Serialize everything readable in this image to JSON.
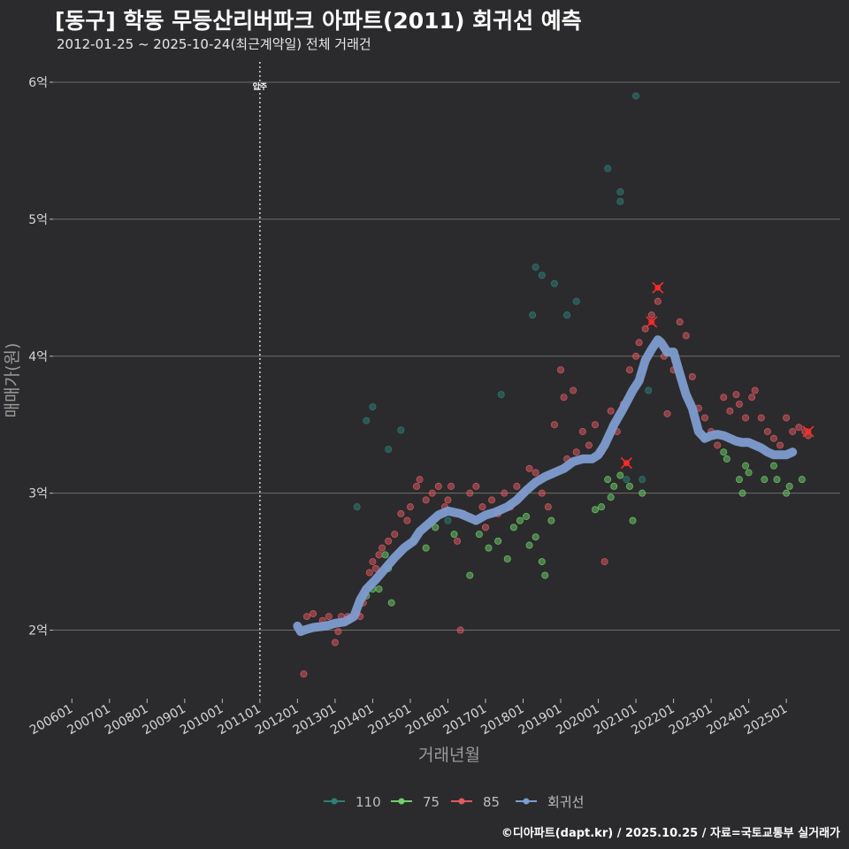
{
  "title": "[동구] 학동 무등산리버파크 아파트(2011) 회귀선 예측",
  "subtitle": "2012-01-25 ~ 2025-10-24(최근계약일) 전체 거래건",
  "credit": "©디아파트(dapt.kr) / 2025.10.25 / 자료=국토교통부 실거래가",
  "colors": {
    "background": "#2b2b2d",
    "grid": "#6e6e6e",
    "s110": "#2f7f76",
    "s75": "#6fd06a",
    "s85": "#e05a62",
    "regression": "#7e9cd0",
    "highlight": "#ff2a2a"
  },
  "chart_data": {
    "type": "scatter",
    "xlabel": "거래년월",
    "ylabel": "매매가(원)",
    "xlim": [
      "2005-07",
      "2026-09"
    ],
    "ylim": [
      1.5,
      6.2
    ],
    "x_ticks": [
      "200601",
      "200701",
      "200801",
      "200901",
      "201001",
      "201101",
      "201201",
      "201301",
      "201401",
      "201501",
      "201601",
      "201701",
      "201801",
      "201901",
      "202001",
      "202101",
      "202201",
      "202301",
      "202401",
      "202501"
    ],
    "y_ticks": [
      {
        "value": 2,
        "label": "2억"
      },
      {
        "value": 3,
        "label": "3억"
      },
      {
        "value": 4,
        "label": "4억"
      },
      {
        "value": 5,
        "label": "5억"
      },
      {
        "value": 6,
        "label": "6억"
      }
    ],
    "annotation": {
      "x": "2011-01",
      "label": "입주"
    },
    "legend": {
      "placement": "bottom",
      "items": [
        {
          "key": "s110",
          "label": "110"
        },
        {
          "key": "s75",
          "label": "75"
        },
        {
          "key": "s85",
          "label": "85"
        },
        {
          "key": "regression",
          "label": "회귀선"
        }
      ]
    },
    "series": [
      {
        "name": "110",
        "color_key": "s110",
        "points": [
          [
            "2013-08",
            2.9
          ],
          [
            "2013-11",
            3.53
          ],
          [
            "2014-01",
            3.63
          ],
          [
            "2014-06",
            3.32
          ],
          [
            "2014-10",
            3.46
          ],
          [
            "2016-01",
            2.8
          ],
          [
            "2017-06",
            3.72
          ],
          [
            "2018-04",
            4.3
          ],
          [
            "2018-05",
            4.65
          ],
          [
            "2018-07",
            4.59
          ],
          [
            "2018-11",
            4.53
          ],
          [
            "2019-03",
            4.3
          ],
          [
            "2019-06",
            4.4
          ],
          [
            "2020-04",
            5.37
          ],
          [
            "2020-08",
            5.2
          ],
          [
            "2020-08",
            5.13
          ],
          [
            "2021-01",
            5.9
          ],
          [
            "2020-10",
            3.1
          ],
          [
            "2021-05",
            3.75
          ],
          [
            "2021-03",
            3.1
          ]
        ]
      },
      {
        "name": "75",
        "color_key": "s75",
        "points": [
          [
            "2013-11",
            2.25
          ],
          [
            "2014-01",
            2.3
          ],
          [
            "2014-03",
            2.3
          ],
          [
            "2014-05",
            2.55
          ],
          [
            "2014-06",
            2.45
          ],
          [
            "2014-07",
            2.2
          ],
          [
            "2015-02",
            2.65
          ],
          [
            "2015-06",
            2.6
          ],
          [
            "2015-09",
            2.75
          ],
          [
            "2016-03",
            2.7
          ],
          [
            "2016-08",
            2.4
          ],
          [
            "2016-11",
            2.7
          ],
          [
            "2017-02",
            2.6
          ],
          [
            "2017-05",
            2.65
          ],
          [
            "2017-08",
            2.52
          ],
          [
            "2017-10",
            2.75
          ],
          [
            "2017-12",
            2.8
          ],
          [
            "2018-02",
            2.83
          ],
          [
            "2018-03",
            2.62
          ],
          [
            "2018-05",
            2.68
          ],
          [
            "2018-07",
            2.5
          ],
          [
            "2018-08",
            2.4
          ],
          [
            "2018-10",
            2.8
          ],
          [
            "2019-12",
            2.88
          ],
          [
            "2020-02",
            2.9
          ],
          [
            "2020-04",
            3.1
          ],
          [
            "2020-05",
            2.97
          ],
          [
            "2020-06",
            3.05
          ],
          [
            "2020-08",
            3.13
          ],
          [
            "2020-11",
            3.05
          ],
          [
            "2020-12",
            2.8
          ],
          [
            "2021-03",
            3.0
          ],
          [
            "2022-11",
            3.41
          ],
          [
            "2023-05",
            3.3
          ],
          [
            "2023-06",
            3.25
          ],
          [
            "2023-10",
            3.1
          ],
          [
            "2023-11",
            3.0
          ],
          [
            "2023-12",
            3.2
          ],
          [
            "2024-01",
            3.15
          ],
          [
            "2024-06",
            3.1
          ],
          [
            "2024-09",
            3.2
          ],
          [
            "2024-10",
            3.1
          ],
          [
            "2025-01",
            3.0
          ],
          [
            "2025-02",
            3.05
          ],
          [
            "2025-06",
            3.1
          ]
        ]
      },
      {
        "name": "85",
        "color_key": "s85",
        "points": [
          [
            "2012-03",
            1.68
          ],
          [
            "2012-04",
            2.1
          ],
          [
            "2012-06",
            2.12
          ],
          [
            "2012-09",
            2.07
          ],
          [
            "2012-11",
            2.1
          ],
          [
            "2013-01",
            1.91
          ],
          [
            "2013-02",
            1.99
          ],
          [
            "2013-03",
            2.1
          ],
          [
            "2013-05",
            2.1
          ],
          [
            "2013-06",
            2.08
          ],
          [
            "2013-08",
            2.12
          ],
          [
            "2013-09",
            2.1
          ],
          [
            "2013-10",
            2.2
          ],
          [
            "2013-12",
            2.42
          ],
          [
            "2014-01",
            2.5
          ],
          [
            "2014-02",
            2.45
          ],
          [
            "2014-03",
            2.55
          ],
          [
            "2014-04",
            2.6
          ],
          [
            "2014-06",
            2.65
          ],
          [
            "2014-08",
            2.7
          ],
          [
            "2014-10",
            2.85
          ],
          [
            "2014-12",
            2.8
          ],
          [
            "2015-01",
            2.9
          ],
          [
            "2015-03",
            3.05
          ],
          [
            "2015-04",
            3.1
          ],
          [
            "2015-06",
            2.95
          ],
          [
            "2015-08",
            3.0
          ],
          [
            "2015-10",
            3.05
          ],
          [
            "2015-12",
            2.9
          ],
          [
            "2016-01",
            2.95
          ],
          [
            "2016-02",
            3.05
          ],
          [
            "2016-04",
            2.65
          ],
          [
            "2016-05",
            2.0
          ],
          [
            "2016-06",
            2.85
          ],
          [
            "2016-08",
            3.0
          ],
          [
            "2016-10",
            3.05
          ],
          [
            "2016-12",
            2.9
          ],
          [
            "2017-01",
            2.75
          ],
          [
            "2017-03",
            2.95
          ],
          [
            "2017-05",
            2.85
          ],
          [
            "2017-07",
            3.0
          ],
          [
            "2017-09",
            2.9
          ],
          [
            "2017-11",
            3.05
          ],
          [
            "2018-01",
            3.0
          ],
          [
            "2018-03",
            3.18
          ],
          [
            "2018-05",
            3.15
          ],
          [
            "2018-07",
            3.0
          ],
          [
            "2018-09",
            2.9
          ],
          [
            "2018-11",
            3.5
          ],
          [
            "2019-01",
            3.9
          ],
          [
            "2019-02",
            3.7
          ],
          [
            "2019-03",
            3.25
          ],
          [
            "2019-05",
            3.75
          ],
          [
            "2019-06",
            3.3
          ],
          [
            "2019-08",
            3.45
          ],
          [
            "2019-10",
            3.35
          ],
          [
            "2019-12",
            3.5
          ],
          [
            "2020-02",
            3.3
          ],
          [
            "2020-03",
            2.5
          ],
          [
            "2020-05",
            3.6
          ],
          [
            "2020-07",
            3.45
          ],
          [
            "2020-09",
            3.65
          ],
          [
            "2020-11",
            3.9
          ],
          [
            "2021-01",
            4.0
          ],
          [
            "2021-02",
            4.1
          ],
          [
            "2021-04",
            4.2
          ],
          [
            "2021-06",
            4.3
          ],
          [
            "2021-08",
            4.4
          ],
          [
            "2021-10",
            4.0
          ],
          [
            "2021-11",
            3.58
          ],
          [
            "2022-01",
            3.9
          ],
          [
            "2022-03",
            4.25
          ],
          [
            "2022-05",
            4.15
          ],
          [
            "2022-07",
            3.85
          ],
          [
            "2022-09",
            3.62
          ],
          [
            "2022-11",
            3.55
          ],
          [
            "2023-01",
            3.45
          ],
          [
            "2023-03",
            3.35
          ],
          [
            "2023-05",
            3.7
          ],
          [
            "2023-07",
            3.6
          ],
          [
            "2023-09",
            3.72
          ],
          [
            "2023-10",
            3.65
          ],
          [
            "2023-12",
            3.55
          ],
          [
            "2024-02",
            3.7
          ],
          [
            "2024-03",
            3.75
          ],
          [
            "2024-05",
            3.55
          ],
          [
            "2024-07",
            3.45
          ],
          [
            "2024-09",
            3.4
          ],
          [
            "2024-11",
            3.35
          ],
          [
            "2025-01",
            3.55
          ],
          [
            "2025-03",
            3.45
          ],
          [
            "2025-05",
            3.48
          ],
          [
            "2025-07",
            3.45
          ],
          [
            "2025-08",
            3.42
          ]
        ]
      },
      {
        "name": "회귀선",
        "color_key": "regression",
        "points": [
          [
            "2012-01",
            2.03
          ],
          [
            "2012-02",
            1.99
          ],
          [
            "2012-03",
            2.0
          ],
          [
            "2012-06",
            2.02
          ],
          [
            "2012-10",
            2.03
          ],
          [
            "2013-01",
            2.05
          ],
          [
            "2013-04",
            2.06
          ],
          [
            "2013-07",
            2.1
          ],
          [
            "2013-09",
            2.22
          ],
          [
            "2013-11",
            2.3
          ],
          [
            "2014-02",
            2.37
          ],
          [
            "2014-05",
            2.45
          ],
          [
            "2014-08",
            2.53
          ],
          [
            "2014-11",
            2.6
          ],
          [
            "2015-02",
            2.65
          ],
          [
            "2015-04",
            2.72
          ],
          [
            "2015-07",
            2.78
          ],
          [
            "2015-10",
            2.84
          ],
          [
            "2016-01",
            2.87
          ],
          [
            "2016-05",
            2.85
          ],
          [
            "2016-08",
            2.82
          ],
          [
            "2016-10",
            2.8
          ],
          [
            "2017-01",
            2.84
          ],
          [
            "2017-04",
            2.86
          ],
          [
            "2017-08",
            2.9
          ],
          [
            "2017-11",
            2.95
          ],
          [
            "2018-02",
            3.02
          ],
          [
            "2018-05",
            3.08
          ],
          [
            "2018-08",
            3.12
          ],
          [
            "2018-11",
            3.15
          ],
          [
            "2019-02",
            3.18
          ],
          [
            "2019-05",
            3.23
          ],
          [
            "2019-08",
            3.25
          ],
          [
            "2019-11",
            3.25
          ],
          [
            "2020-01",
            3.28
          ],
          [
            "2020-03",
            3.35
          ],
          [
            "2020-06",
            3.5
          ],
          [
            "2020-09",
            3.62
          ],
          [
            "2020-12",
            3.75
          ],
          [
            "2021-02",
            3.82
          ],
          [
            "2021-04",
            3.97
          ],
          [
            "2021-06",
            4.05
          ],
          [
            "2021-08",
            4.12
          ],
          [
            "2021-09",
            4.1
          ],
          [
            "2021-11",
            4.03
          ],
          [
            "2022-01",
            4.03
          ],
          [
            "2022-03",
            3.87
          ],
          [
            "2022-05",
            3.72
          ],
          [
            "2022-07",
            3.62
          ],
          [
            "2022-09",
            3.45
          ],
          [
            "2022-11",
            3.4
          ],
          [
            "2023-01",
            3.42
          ],
          [
            "2023-03",
            3.43
          ],
          [
            "2023-05",
            3.42
          ],
          [
            "2023-07",
            3.4
          ],
          [
            "2023-09",
            3.38
          ],
          [
            "2023-11",
            3.37
          ],
          [
            "2024-01",
            3.37
          ],
          [
            "2024-03",
            3.35
          ],
          [
            "2024-05",
            3.33
          ],
          [
            "2024-07",
            3.3
          ],
          [
            "2024-09",
            3.28
          ],
          [
            "2024-11",
            3.28
          ],
          [
            "2025-01",
            3.28
          ],
          [
            "2025-03",
            3.3
          ]
        ]
      }
    ],
    "highlights": [
      {
        "x": "2021-08",
        "y": 4.5
      },
      {
        "x": "2021-06",
        "y": 4.25
      },
      {
        "x": "2020-10",
        "y": 3.22
      },
      {
        "x": "2025-08",
        "y": 3.45
      }
    ]
  }
}
